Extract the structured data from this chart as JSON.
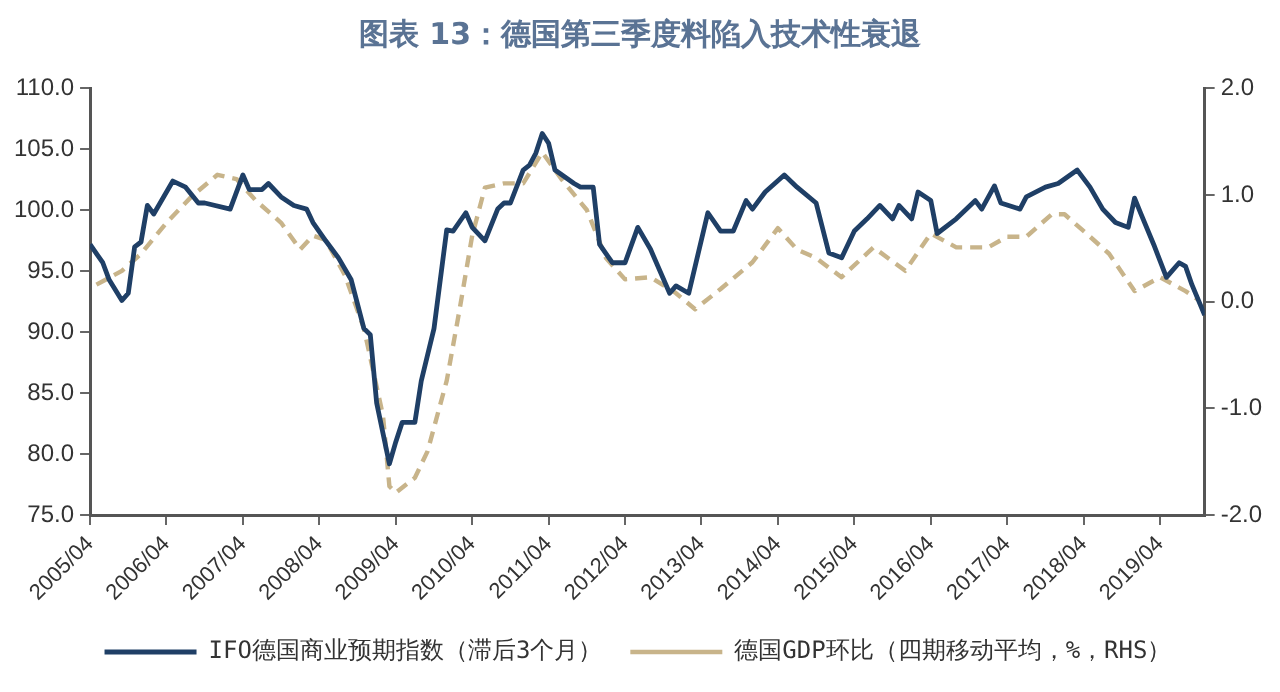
{
  "chart_data": {
    "type": "line",
    "title": "图表 13：德国第三季度料陷入技术性衰退",
    "xlim": [
      "2005-04",
      "2019-11"
    ],
    "xticks": [
      {
        "value": "2005-04",
        "label": "2005/04"
      },
      {
        "value": "2006-04",
        "label": "2006/04"
      },
      {
        "value": "2007-04",
        "label": "2007/04"
      },
      {
        "value": "2008-04",
        "label": "2008/04"
      },
      {
        "value": "2009-04",
        "label": "2009/04"
      },
      {
        "value": "2010-04",
        "label": "2010/04"
      },
      {
        "value": "2011-04",
        "label": "2011/04"
      },
      {
        "value": "2012-04",
        "label": "2012/04"
      },
      {
        "value": "2013-04",
        "label": "2013/04"
      },
      {
        "value": "2014-04",
        "label": "2014/04"
      },
      {
        "value": "2015-04",
        "label": "2015/04"
      },
      {
        "value": "2016-04",
        "label": "2016/04"
      },
      {
        "value": "2017-04",
        "label": "2017/04"
      },
      {
        "value": "2018-04",
        "label": "2018/04"
      },
      {
        "value": "2019-04",
        "label": "2019/04"
      }
    ],
    "ylim": [
      75,
      110
    ],
    "yticks": [
      {
        "value": 75,
        "label": "75.0"
      },
      {
        "value": 80,
        "label": "80.0"
      },
      {
        "value": 85,
        "label": "85.0"
      },
      {
        "value": 90,
        "label": "90.0"
      },
      {
        "value": 95,
        "label": "95.0"
      },
      {
        "value": 100,
        "label": "100.0"
      },
      {
        "value": 105,
        "label": "105.0"
      },
      {
        "value": 110,
        "label": "110.0"
      }
    ],
    "y2lim": [
      -2,
      2
    ],
    "y2ticks": [
      {
        "value": -2,
        "label": "-2.0"
      },
      {
        "value": -1,
        "label": "-1.0"
      },
      {
        "value": 0,
        "label": "0.0"
      },
      {
        "value": 1,
        "label": "1.0"
      },
      {
        "value": 2,
        "label": "2.0"
      }
    ],
    "grid": false,
    "legend": "bottom",
    "marker": "none",
    "series": [
      {
        "name": "IFO德国商业预期指数（滞后3个月）",
        "color": "#1f3f66",
        "line_style": "solid",
        "x": [
          "2005-04",
          "2005-06",
          "2005-07",
          "2005-09",
          "2005-10",
          "2005-11",
          "2005-12",
          "2006-01",
          "2006-02",
          "2006-05",
          "2006-07",
          "2006-09",
          "2006-10",
          "2007-02",
          "2007-04",
          "2007-05",
          "2007-07",
          "2007-08",
          "2007-10",
          "2007-12",
          "2008-02",
          "2008-03",
          "2008-05",
          "2008-07",
          "2008-09",
          "2008-11",
          "2008-12",
          "2009-01",
          "2009-02",
          "2009-03",
          "2009-04",
          "2009-05",
          "2009-07",
          "2009-08",
          "2009-10",
          "2009-12",
          "2010-01",
          "2010-03",
          "2010-04",
          "2010-06",
          "2010-08",
          "2010-09",
          "2010-10",
          "2010-12",
          "2011-01",
          "2011-02",
          "2011-03",
          "2011-04",
          "2011-05",
          "2011-08",
          "2011-09",
          "2011-11",
          "2011-12",
          "2012-02",
          "2012-04",
          "2012-06",
          "2012-08",
          "2012-11",
          "2012-12",
          "2013-02",
          "2013-05",
          "2013-07",
          "2013-09",
          "2013-11",
          "2013-12",
          "2014-02",
          "2014-05",
          "2014-07",
          "2014-10",
          "2014-12",
          "2015-02",
          "2015-04",
          "2015-06",
          "2015-08",
          "2015-10",
          "2015-11",
          "2016-01",
          "2016-02",
          "2016-04",
          "2016-05",
          "2016-08",
          "2016-11",
          "2016-12",
          "2017-02",
          "2017-03",
          "2017-06",
          "2017-07",
          "2017-10",
          "2017-12",
          "2018-03",
          "2018-05",
          "2018-07",
          "2018-09",
          "2018-11",
          "2018-12",
          "2019-01",
          "2019-03",
          "2019-05",
          "2019-07",
          "2019-08",
          "2019-09",
          "2019-11"
        ],
        "values": [
          97.2,
          95.7,
          94.3,
          92.6,
          93.2,
          97.0,
          97.4,
          100.4,
          99.7,
          102.4,
          101.9,
          100.6,
          100.6,
          100.1,
          102.9,
          101.7,
          101.7,
          102.2,
          101.1,
          100.4,
          100.1,
          99.0,
          97.5,
          96.1,
          94.3,
          90.3,
          89.8,
          84.2,
          81.7,
          79.2,
          81.0,
          82.6,
          82.6,
          86.0,
          90.3,
          98.4,
          98.3,
          99.8,
          98.6,
          97.5,
          100.1,
          100.6,
          100.6,
          103.3,
          103.7,
          104.7,
          106.3,
          105.5,
          103.3,
          102.2,
          101.9,
          101.9,
          97.2,
          95.7,
          95.7,
          98.6,
          96.8,
          93.2,
          93.8,
          93.2,
          99.8,
          98.3,
          98.3,
          100.8,
          100.1,
          101.5,
          102.9,
          101.9,
          100.6,
          96.5,
          96.1,
          98.3,
          99.3,
          100.4,
          99.3,
          100.4,
          99.3,
          101.5,
          100.8,
          98.1,
          99.3,
          100.8,
          100.1,
          102.0,
          100.6,
          100.1,
          101.1,
          101.9,
          102.2,
          103.3,
          101.9,
          100.1,
          99.0,
          98.6,
          101.0,
          99.7,
          97.2,
          94.5,
          95.7,
          95.4,
          93.9,
          91.4
        ]
      },
      {
        "name": "德国GDP环比（四期移动平均，%，RHS）",
        "color": "#c8b48a",
        "line_style": "dashed",
        "axis": "y2",
        "x": [
          "2005-05",
          "2005-09",
          "2005-12",
          "2006-04",
          "2006-08",
          "2006-12",
          "2007-03",
          "2007-06",
          "2007-10",
          "2008-01",
          "2008-03",
          "2008-05",
          "2008-08",
          "2008-11",
          "2009-02",
          "2009-03",
          "2009-04",
          "2009-07",
          "2009-09",
          "2009-12",
          "2010-02",
          "2010-04",
          "2010-06",
          "2010-09",
          "2010-12",
          "2011-03",
          "2011-06",
          "2011-10",
          "2012-01",
          "2012-04",
          "2012-08",
          "2012-12",
          "2013-03",
          "2013-07",
          "2013-12",
          "2014-04",
          "2014-07",
          "2014-10",
          "2015-02",
          "2015-07",
          "2015-12",
          "2016-04",
          "2016-08",
          "2017-01",
          "2017-04",
          "2017-07",
          "2017-11",
          "2018-01",
          "2018-05",
          "2018-08",
          "2018-12",
          "2019-04",
          "2019-08",
          "2019-10"
        ],
        "values": [
          0.16,
          0.29,
          0.45,
          0.74,
          0.99,
          1.19,
          1.15,
          0.95,
          0.74,
          0.49,
          0.62,
          0.58,
          0.25,
          -0.25,
          -1.07,
          -1.73,
          -1.79,
          -1.65,
          -1.4,
          -0.74,
          -0.08,
          0.62,
          1.07,
          1.11,
          1.11,
          1.4,
          1.15,
          0.86,
          0.41,
          0.21,
          0.23,
          0.08,
          -0.07,
          0.12,
          0.37,
          0.69,
          0.49,
          0.41,
          0.23,
          0.51,
          0.29,
          0.64,
          0.51,
          0.51,
          0.61,
          0.61,
          0.82,
          0.82,
          0.61,
          0.45,
          0.1,
          0.23,
          0.1,
          0.02
        ]
      }
    ]
  }
}
